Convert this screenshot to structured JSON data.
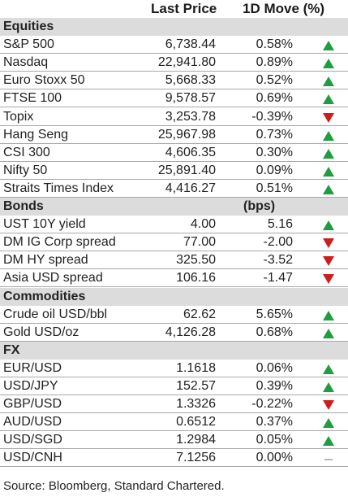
{
  "header": {
    "col_price": "Last Price",
    "col_move": "1D Move (%)"
  },
  "sections": [
    {
      "name": "Equities",
      "unit": "",
      "rows": [
        {
          "name": "S&P 500",
          "price": "6,738.44",
          "move": "0.58%",
          "direction": "up"
        },
        {
          "name": "Nasdaq",
          "price": "22,941.80",
          "move": "0.89%",
          "direction": "up"
        },
        {
          "name": "Euro Stoxx 50",
          "price": "5,668.33",
          "move": "0.52%",
          "direction": "up"
        },
        {
          "name": "FTSE 100",
          "price": "9,578.57",
          "move": "0.69%",
          "direction": "up"
        },
        {
          "name": "Topix",
          "price": "3,253.78",
          "move": "-0.39%",
          "direction": "down"
        },
        {
          "name": "Hang Seng",
          "price": "25,967.98",
          "move": "0.73%",
          "direction": "up"
        },
        {
          "name": "CSI 300",
          "price": "4,606.35",
          "move": "0.30%",
          "direction": "up"
        },
        {
          "name": "Nifty 50",
          "price": "25,891.40",
          "move": "0.09%",
          "direction": "up"
        },
        {
          "name": "Straits Times Index",
          "price": "4,416.27",
          "move": "0.51%",
          "direction": "up"
        }
      ]
    },
    {
      "name": "Bonds",
      "unit": "(bps)",
      "rows": [
        {
          "name": "UST 10Y yield",
          "price": "4.00",
          "move": "5.16",
          "direction": "up"
        },
        {
          "name": "DM IG Corp spread",
          "price": "77.00",
          "move": "-2.00",
          "direction": "down"
        },
        {
          "name": "DM HY spread",
          "price": "325.50",
          "move": "-3.52",
          "direction": "down"
        },
        {
          "name": "Asia USD spread",
          "price": "106.16",
          "move": "-1.47",
          "direction": "down"
        }
      ]
    },
    {
      "name": "Commodities",
      "unit": "",
      "rows": [
        {
          "name": "Crude oil USD/bbl",
          "price": "62.62",
          "move": "5.65%",
          "direction": "up"
        },
        {
          "name": "Gold USD/oz",
          "price": "4,126.28",
          "move": "0.68%",
          "direction": "up"
        }
      ]
    },
    {
      "name": "FX",
      "unit": "",
      "rows": [
        {
          "name": "EUR/USD",
          "price": "1.1618",
          "move": "0.06%",
          "direction": "up"
        },
        {
          "name": "USD/JPY",
          "price": "152.57",
          "move": "0.39%",
          "direction": "up"
        },
        {
          "name": "GBP/USD",
          "price": "1.3326",
          "move": "-0.22%",
          "direction": "down"
        },
        {
          "name": "AUD/USD",
          "price": "0.6512",
          "move": "0.37%",
          "direction": "up"
        },
        {
          "name": "USD/SGD",
          "price": "1.2984",
          "move": "0.05%",
          "direction": "up"
        },
        {
          "name": "USD/CNH",
          "price": "7.1256",
          "move": "0.00%",
          "direction": "flat"
        }
      ]
    }
  ],
  "footer": {
    "source": "Source: Bloomberg, Standard Chartered."
  },
  "colors": {
    "up": "#1e9e3e",
    "down": "#d01c1c",
    "flat": "#888888",
    "section_bg": "#dcdcdc"
  }
}
